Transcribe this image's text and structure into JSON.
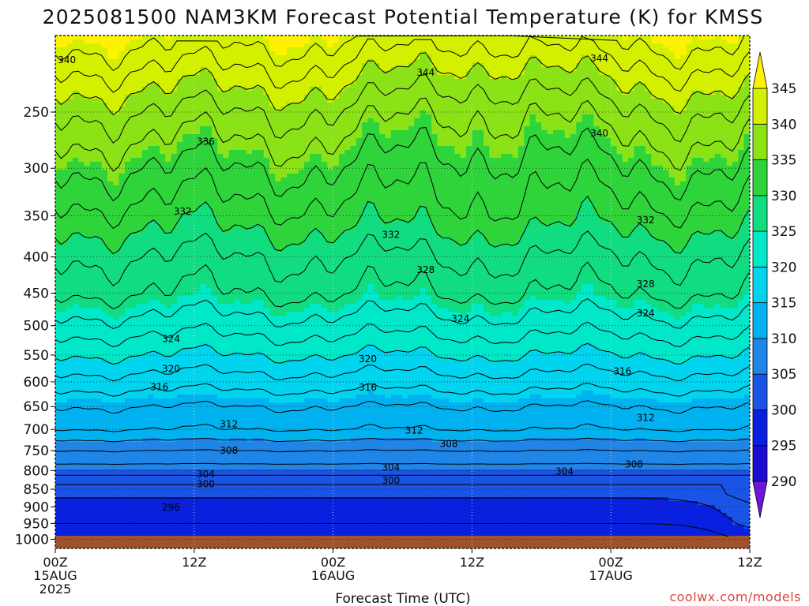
{
  "title": "2025081500 NAM3KM Forecast Potential Temperature (K) for KMSS",
  "credit": "coolwx.com/models",
  "chart_data": {
    "type": "heatmap",
    "title": "2025081500 NAM3KM Forecast Potential Temperature (K) for KMSS",
    "xlabel": "Forecast Time (UTC)",
    "ylabel": "",
    "x_ticks": [
      {
        "hour": 0,
        "lines": [
          "00Z",
          "15AUG",
          "2025"
        ]
      },
      {
        "hour": 12,
        "lines": [
          "12Z"
        ]
      },
      {
        "hour": 24,
        "lines": [
          "00Z",
          "16AUG"
        ]
      },
      {
        "hour": 36,
        "lines": [
          "12Z"
        ]
      },
      {
        "hour": 48,
        "lines": [
          "00Z",
          "17AUG"
        ]
      },
      {
        "hour": 60,
        "lines": [
          "12Z"
        ]
      }
    ],
    "xlim": [
      0,
      60
    ],
    "y_ticks": [
      "250",
      "300",
      "350",
      "400",
      "450",
      "500",
      "550",
      "600",
      "650",
      "700",
      "750",
      "800",
      "850",
      "900",
      "950",
      "1000"
    ],
    "ylim_hpa": [
      1030,
      195
    ],
    "y_scale": "log",
    "grid": true,
    "colorbar": {
      "labels": [
        "345",
        "340",
        "335",
        "330",
        "325",
        "320",
        "315",
        "310",
        "305",
        "300",
        "295",
        "290"
      ],
      "levels": [
        {
          "value": 290,
          "color": "#6b16d8"
        },
        {
          "value": 295,
          "color": "#1c0bd0"
        },
        {
          "value": 300,
          "color": "#0a20e0"
        },
        {
          "value": 305,
          "color": "#1a54e6"
        },
        {
          "value": 310,
          "color": "#1f86e8"
        },
        {
          "value": 315,
          "color": "#00b2f0"
        },
        {
          "value": 320,
          "color": "#00d4ee"
        },
        {
          "value": 325,
          "color": "#00e8c8"
        },
        {
          "value": 330,
          "color": "#11dc80"
        },
        {
          "value": 335,
          "color": "#2ed43a"
        },
        {
          "value": 340,
          "color": "#8be216"
        },
        {
          "value": 345,
          "color": "#d3f000"
        },
        {
          "value": 350,
          "color": "#fff200"
        }
      ]
    },
    "isotherm_labels": [
      {
        "text": "340",
        "hour": 1,
        "p": 211
      },
      {
        "text": "344",
        "hour": 32,
        "p": 220
      },
      {
        "text": "344",
        "hour": 47,
        "p": 210
      },
      {
        "text": "336",
        "hour": 13,
        "p": 275
      },
      {
        "text": "340",
        "hour": 47,
        "p": 268
      },
      {
        "text": "332",
        "hour": 11,
        "p": 345
      },
      {
        "text": "332",
        "hour": 29,
        "p": 372
      },
      {
        "text": "332",
        "hour": 51,
        "p": 355
      },
      {
        "text": "328",
        "hour": 32,
        "p": 417
      },
      {
        "text": "328",
        "hour": 51,
        "p": 437
      },
      {
        "text": "324",
        "hour": 35,
        "p": 489
      },
      {
        "text": "324",
        "hour": 51,
        "p": 480
      },
      {
        "text": "324",
        "hour": 10,
        "p": 522
      },
      {
        "text": "320",
        "hour": 27,
        "p": 557
      },
      {
        "text": "320",
        "hour": 10,
        "p": 575
      },
      {
        "text": "316",
        "hour": 9,
        "p": 610
      },
      {
        "text": "316",
        "hour": 27,
        "p": 611
      },
      {
        "text": "316",
        "hour": 49,
        "p": 580
      },
      {
        "text": "312",
        "hour": 15,
        "p": 688
      },
      {
        "text": "312",
        "hour": 31,
        "p": 702
      },
      {
        "text": "312",
        "hour": 51,
        "p": 674
      },
      {
        "text": "308",
        "hour": 15,
        "p": 750
      },
      {
        "text": "308",
        "hour": 34,
        "p": 734
      },
      {
        "text": "308",
        "hour": 50,
        "p": 784
      },
      {
        "text": "304",
        "hour": 13,
        "p": 810
      },
      {
        "text": "304",
        "hour": 29,
        "p": 792
      },
      {
        "text": "304",
        "hour": 44,
        "p": 802
      },
      {
        "text": "300",
        "hour": 13,
        "p": 836
      },
      {
        "text": "300",
        "hour": 29,
        "p": 826
      },
      {
        "text": "296",
        "hour": 10,
        "p": 902
      }
    ]
  }
}
